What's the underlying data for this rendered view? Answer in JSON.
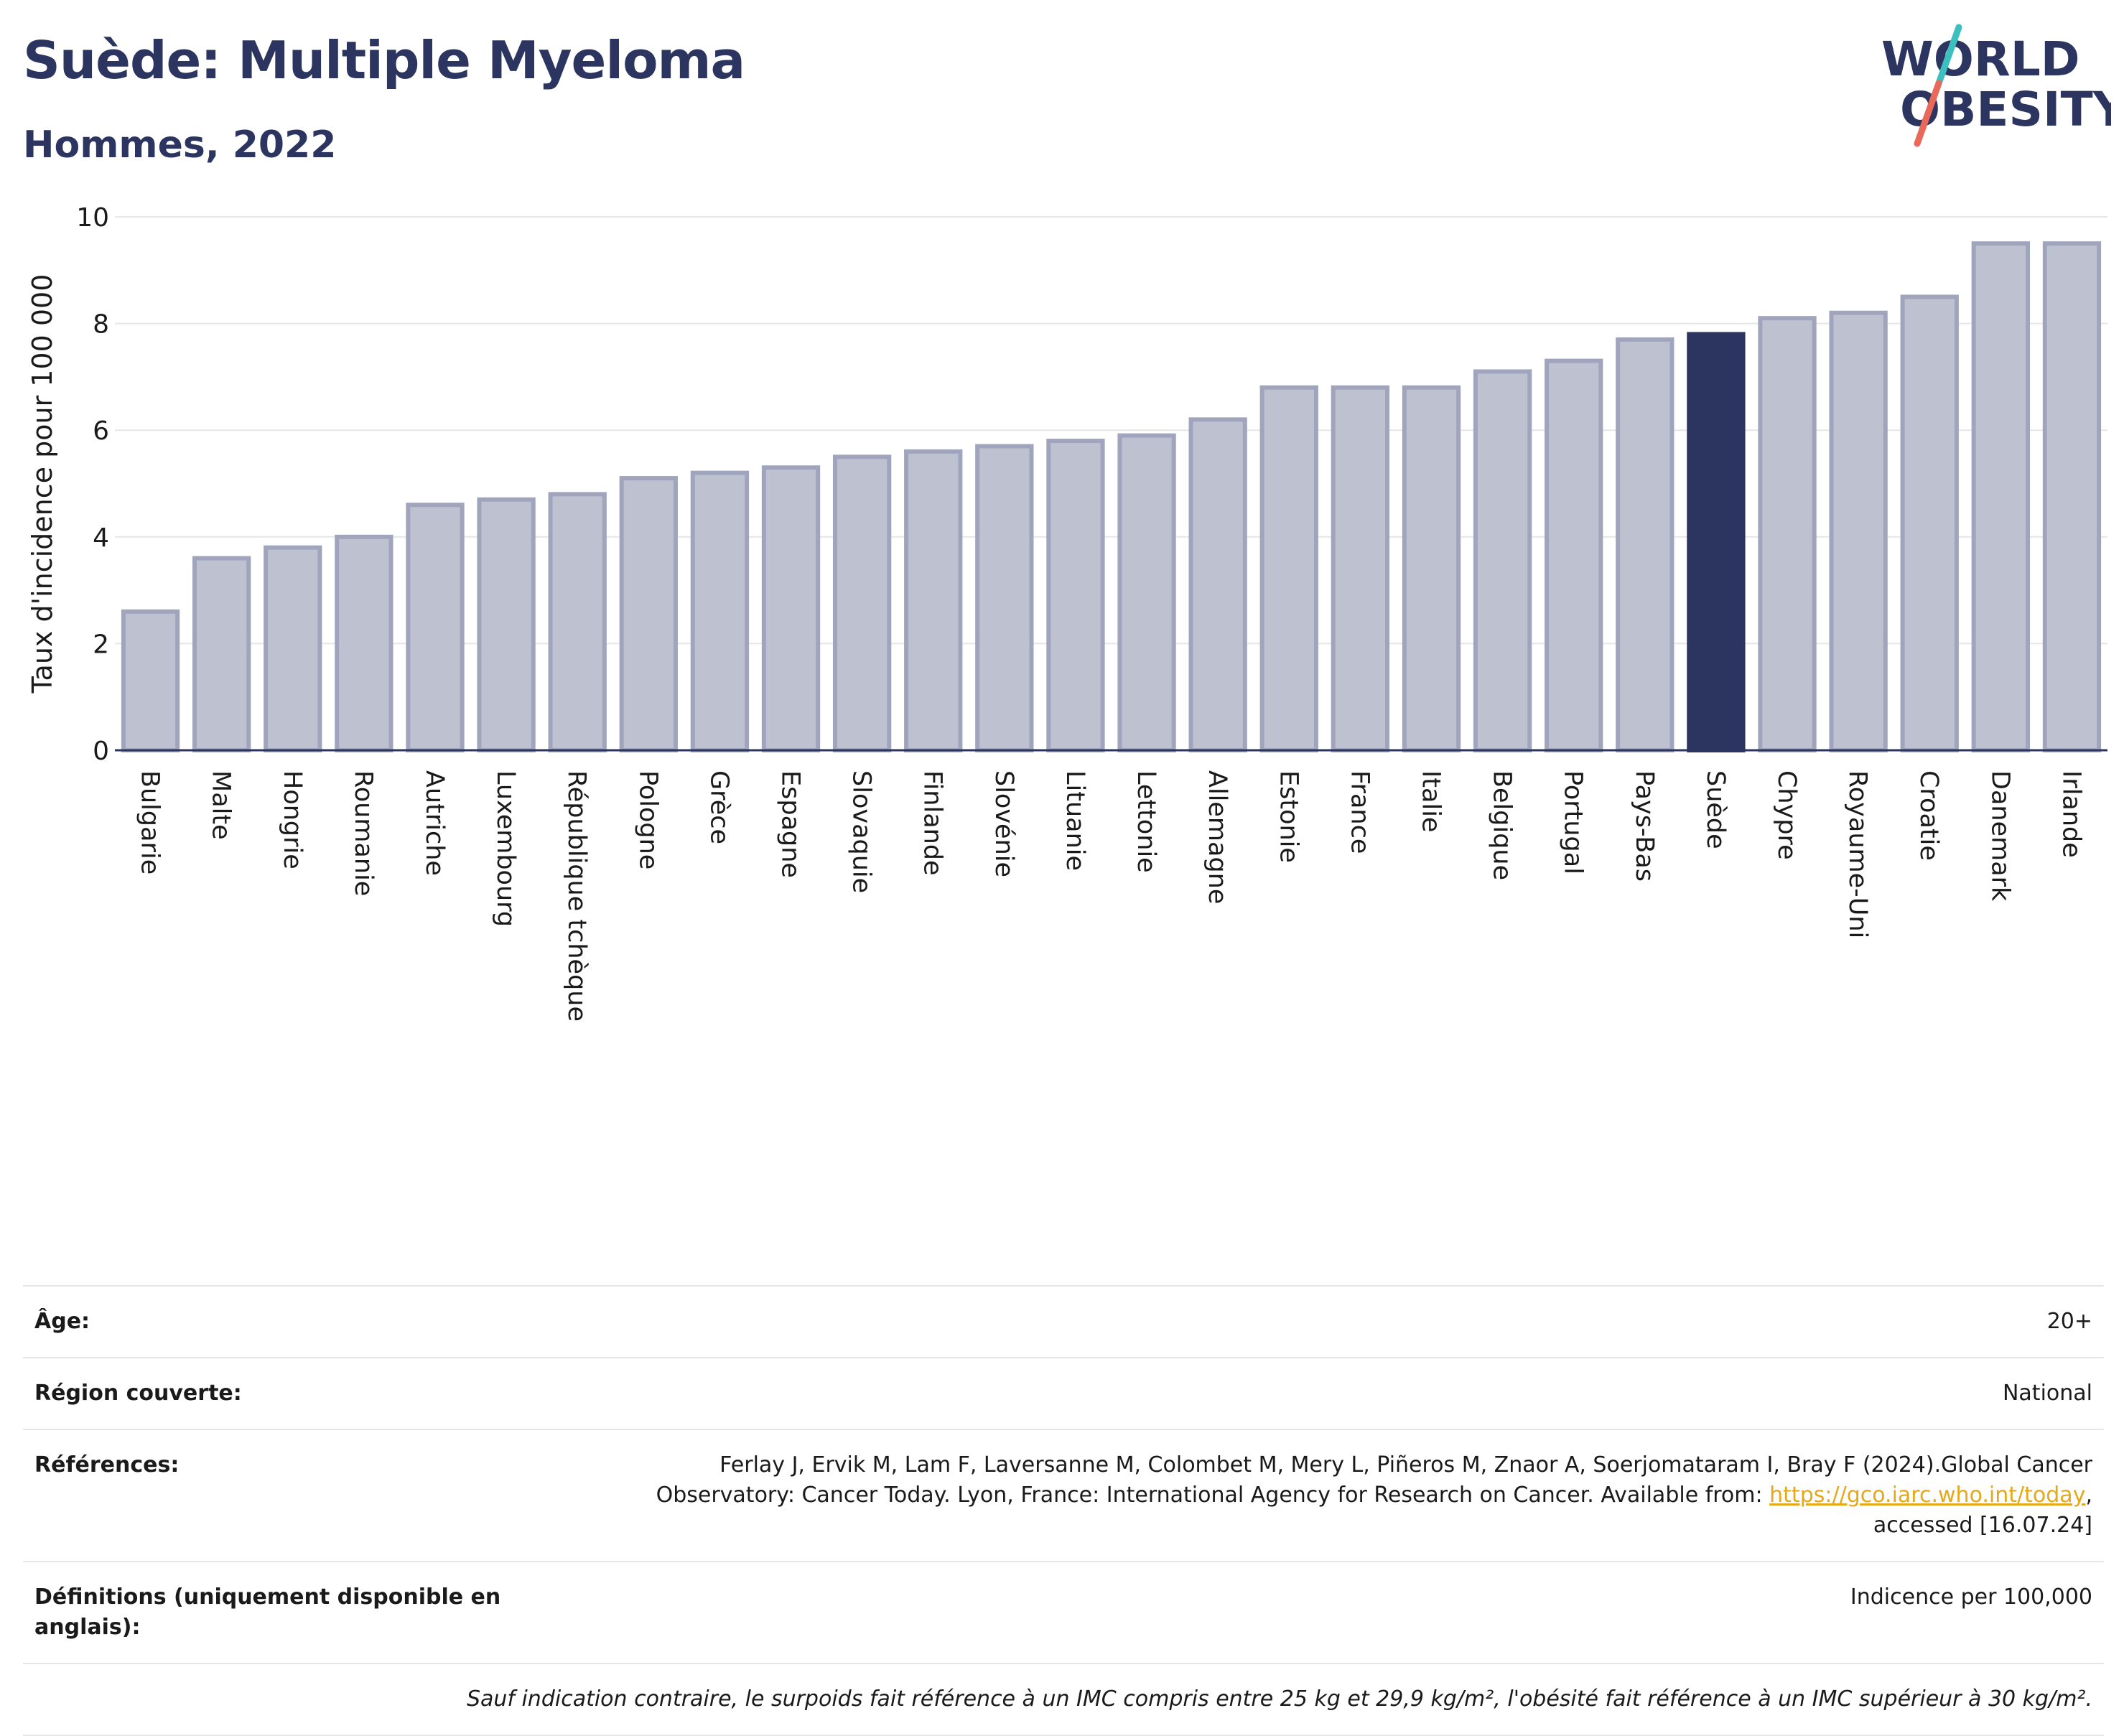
{
  "header": {
    "title": "Suède: Multiple Myeloma",
    "subtitle": "Hommes, 2022"
  },
  "logo": {
    "line1": "WORLD",
    "line2": "OBESITY",
    "colors": {
      "text": "#2b3560",
      "slash_top": "#3bbfbf",
      "slash_bottom": "#e8685a"
    }
  },
  "colors": {
    "bar_default": "#bec1cf",
    "bar_default_border": "#a0a5bd",
    "bar_highlight": "#2b3560",
    "grid": "#e6e6e6",
    "axis_text": "#1a1a1a"
  },
  "chart_data": {
    "type": "bar",
    "title": "Suède: Multiple Myeloma",
    "subtitle": "Hommes, 2022",
    "xlabel": "",
    "ylabel": "Taux d'incidence pour 100 000",
    "ylim": [
      0,
      10
    ],
    "yticks": [
      0,
      2,
      4,
      6,
      8,
      10
    ],
    "grid": true,
    "highlight": "Suède",
    "categories": [
      "Bulgarie",
      "Malte",
      "Hongrie",
      "Roumanie",
      "Autriche",
      "Luxembourg",
      "République tchèque",
      "Pologne",
      "Grèce",
      "Espagne",
      "Slovaquie",
      "Finlande",
      "Slovénie",
      "Lituanie",
      "Lettonie",
      "Allemagne",
      "Estonie",
      "France",
      "Italie",
      "Belgique",
      "Portugal",
      "Pays-Bas",
      "Suède",
      "Chypre",
      "Royaume-Uni",
      "Croatie",
      "Danemark",
      "Irlande"
    ],
    "values": [
      2.6,
      3.6,
      3.8,
      4.0,
      4.6,
      4.7,
      4.8,
      5.1,
      5.2,
      5.3,
      5.5,
      5.6,
      5.7,
      5.8,
      5.9,
      6.2,
      6.8,
      6.8,
      6.8,
      7.1,
      7.3,
      7.7,
      7.8,
      8.1,
      8.2,
      8.5,
      9.5,
      9.5
    ]
  },
  "info": {
    "age_label": "Âge:",
    "age_value": "20+",
    "region_label": "Région couverte:",
    "region_value": "National",
    "refs_label": "Références:",
    "refs_text_1": "Ferlay J, Ervik M, Lam F, Laversanne M, Colombet M, Mery L, Piñeros M, Znaor A, Soerjomataram I, Bray F (2024).Global Cancer",
    "refs_text_2": "Observatory: Cancer Today. Lyon, France: International Agency for Research on Cancer. Available from: ",
    "refs_link": "https://gco.iarc.who.int/today",
    "refs_text_3": ",",
    "refs_text_4": "accessed [16.07.24]",
    "defs_label": "Définitions (uniquement disponible en anglais):",
    "defs_value": "Indicence per 100,000",
    "note": "Sauf indication contraire, le surpoids fait référence à un IMC compris entre 25 kg et 29,9 kg/m², l'obésité fait référence à un IMC supérieur à 30 kg/m²."
  }
}
